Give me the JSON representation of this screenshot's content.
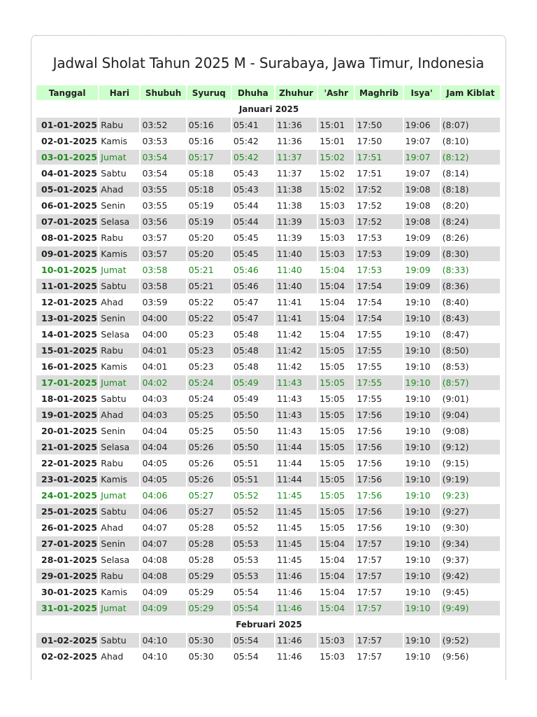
{
  "title": "Jadwal Sholat Tahun 2025 M - Surabaya, Jawa Timur, Indonesia",
  "colors": {
    "header_bg": "#ccffcc",
    "friday_text": "#1e8c1e",
    "stripe": "#dddddd"
  },
  "columns": [
    "Tanggal",
    "Hari",
    "Shubuh",
    "Syuruq",
    "Dhuha",
    "Zhuhur",
    "'Ashr",
    "Maghrib",
    "Isya'",
    "Jam Kiblat"
  ],
  "months": [
    {
      "label": "Januari 2025",
      "rows": [
        [
          "01-01-2025",
          "Rabu",
          "03:52",
          "05:16",
          "05:41",
          "11:36",
          "15:01",
          "17:50",
          "19:06",
          "(8:07)"
        ],
        [
          "02-01-2025",
          "Kamis",
          "03:53",
          "05:16",
          "05:42",
          "11:36",
          "15:01",
          "17:50",
          "19:07",
          "(8:10)"
        ],
        [
          "03-01-2025",
          "Jumat",
          "03:54",
          "05:17",
          "05:42",
          "11:37",
          "15:02",
          "17:51",
          "19:07",
          "(8:12)"
        ],
        [
          "04-01-2025",
          "Sabtu",
          "03:54",
          "05:18",
          "05:43",
          "11:37",
          "15:02",
          "17:51",
          "19:07",
          "(8:14)"
        ],
        [
          "05-01-2025",
          "Ahad",
          "03:55",
          "05:18",
          "05:43",
          "11:38",
          "15:02",
          "17:52",
          "19:08",
          "(8:18)"
        ],
        [
          "06-01-2025",
          "Senin",
          "03:55",
          "05:19",
          "05:44",
          "11:38",
          "15:03",
          "17:52",
          "19:08",
          "(8:20)"
        ],
        [
          "07-01-2025",
          "Selasa",
          "03:56",
          "05:19",
          "05:44",
          "11:39",
          "15:03",
          "17:52",
          "19:08",
          "(8:24)"
        ],
        [
          "08-01-2025",
          "Rabu",
          "03:57",
          "05:20",
          "05:45",
          "11:39",
          "15:03",
          "17:53",
          "19:09",
          "(8:26)"
        ],
        [
          "09-01-2025",
          "Kamis",
          "03:57",
          "05:20",
          "05:45",
          "11:40",
          "15:03",
          "17:53",
          "19:09",
          "(8:30)"
        ],
        [
          "10-01-2025",
          "Jumat",
          "03:58",
          "05:21",
          "05:46",
          "11:40",
          "15:04",
          "17:53",
          "19:09",
          "(8:33)"
        ],
        [
          "11-01-2025",
          "Sabtu",
          "03:58",
          "05:21",
          "05:46",
          "11:40",
          "15:04",
          "17:54",
          "19:09",
          "(8:36)"
        ],
        [
          "12-01-2025",
          "Ahad",
          "03:59",
          "05:22",
          "05:47",
          "11:41",
          "15:04",
          "17:54",
          "19:10",
          "(8:40)"
        ],
        [
          "13-01-2025",
          "Senin",
          "04:00",
          "05:22",
          "05:47",
          "11:41",
          "15:04",
          "17:54",
          "19:10",
          "(8:43)"
        ],
        [
          "14-01-2025",
          "Selasa",
          "04:00",
          "05:23",
          "05:48",
          "11:42",
          "15:04",
          "17:55",
          "19:10",
          "(8:47)"
        ],
        [
          "15-01-2025",
          "Rabu",
          "04:01",
          "05:23",
          "05:48",
          "11:42",
          "15:05",
          "17:55",
          "19:10",
          "(8:50)"
        ],
        [
          "16-01-2025",
          "Kamis",
          "04:01",
          "05:23",
          "05:48",
          "11:42",
          "15:05",
          "17:55",
          "19:10",
          "(8:53)"
        ],
        [
          "17-01-2025",
          "Jumat",
          "04:02",
          "05:24",
          "05:49",
          "11:43",
          "15:05",
          "17:55",
          "19:10",
          "(8:57)"
        ],
        [
          "18-01-2025",
          "Sabtu",
          "04:03",
          "05:24",
          "05:49",
          "11:43",
          "15:05",
          "17:55",
          "19:10",
          "(9:01)"
        ],
        [
          "19-01-2025",
          "Ahad",
          "04:03",
          "05:25",
          "05:50",
          "11:43",
          "15:05",
          "17:56",
          "19:10",
          "(9:04)"
        ],
        [
          "20-01-2025",
          "Senin",
          "04:04",
          "05:25",
          "05:50",
          "11:43",
          "15:05",
          "17:56",
          "19:10",
          "(9:08)"
        ],
        [
          "21-01-2025",
          "Selasa",
          "04:04",
          "05:26",
          "05:50",
          "11:44",
          "15:05",
          "17:56",
          "19:10",
          "(9:12)"
        ],
        [
          "22-01-2025",
          "Rabu",
          "04:05",
          "05:26",
          "05:51",
          "11:44",
          "15:05",
          "17:56",
          "19:10",
          "(9:15)"
        ],
        [
          "23-01-2025",
          "Kamis",
          "04:05",
          "05:26",
          "05:51",
          "11:44",
          "15:05",
          "17:56",
          "19:10",
          "(9:19)"
        ],
        [
          "24-01-2025",
          "Jumat",
          "04:06",
          "05:27",
          "05:52",
          "11:45",
          "15:05",
          "17:56",
          "19:10",
          "(9:23)"
        ],
        [
          "25-01-2025",
          "Sabtu",
          "04:06",
          "05:27",
          "05:52",
          "11:45",
          "15:05",
          "17:56",
          "19:10",
          "(9:27)"
        ],
        [
          "26-01-2025",
          "Ahad",
          "04:07",
          "05:28",
          "05:52",
          "11:45",
          "15:05",
          "17:56",
          "19:10",
          "(9:30)"
        ],
        [
          "27-01-2025",
          "Senin",
          "04:07",
          "05:28",
          "05:53",
          "11:45",
          "15:04",
          "17:57",
          "19:10",
          "(9:34)"
        ],
        [
          "28-01-2025",
          "Selasa",
          "04:08",
          "05:28",
          "05:53",
          "11:45",
          "15:04",
          "17:57",
          "19:10",
          "(9:37)"
        ],
        [
          "29-01-2025",
          "Rabu",
          "04:08",
          "05:29",
          "05:53",
          "11:46",
          "15:04",
          "17:57",
          "19:10",
          "(9:42)"
        ],
        [
          "30-01-2025",
          "Kamis",
          "04:09",
          "05:29",
          "05:54",
          "11:46",
          "15:04",
          "17:57",
          "19:10",
          "(9:45)"
        ],
        [
          "31-01-2025",
          "Jumat",
          "04:09",
          "05:29",
          "05:54",
          "11:46",
          "15:04",
          "17:57",
          "19:10",
          "(9:49)"
        ]
      ]
    },
    {
      "label": "Februari 2025",
      "rows": [
        [
          "01-02-2025",
          "Sabtu",
          "04:10",
          "05:30",
          "05:54",
          "11:46",
          "15:03",
          "17:57",
          "19:10",
          "(9:52)"
        ],
        [
          "02-02-2025",
          "Ahad",
          "04:10",
          "05:30",
          "05:54",
          "11:46",
          "15:03",
          "17:57",
          "19:10",
          "(9:56)"
        ]
      ]
    }
  ]
}
